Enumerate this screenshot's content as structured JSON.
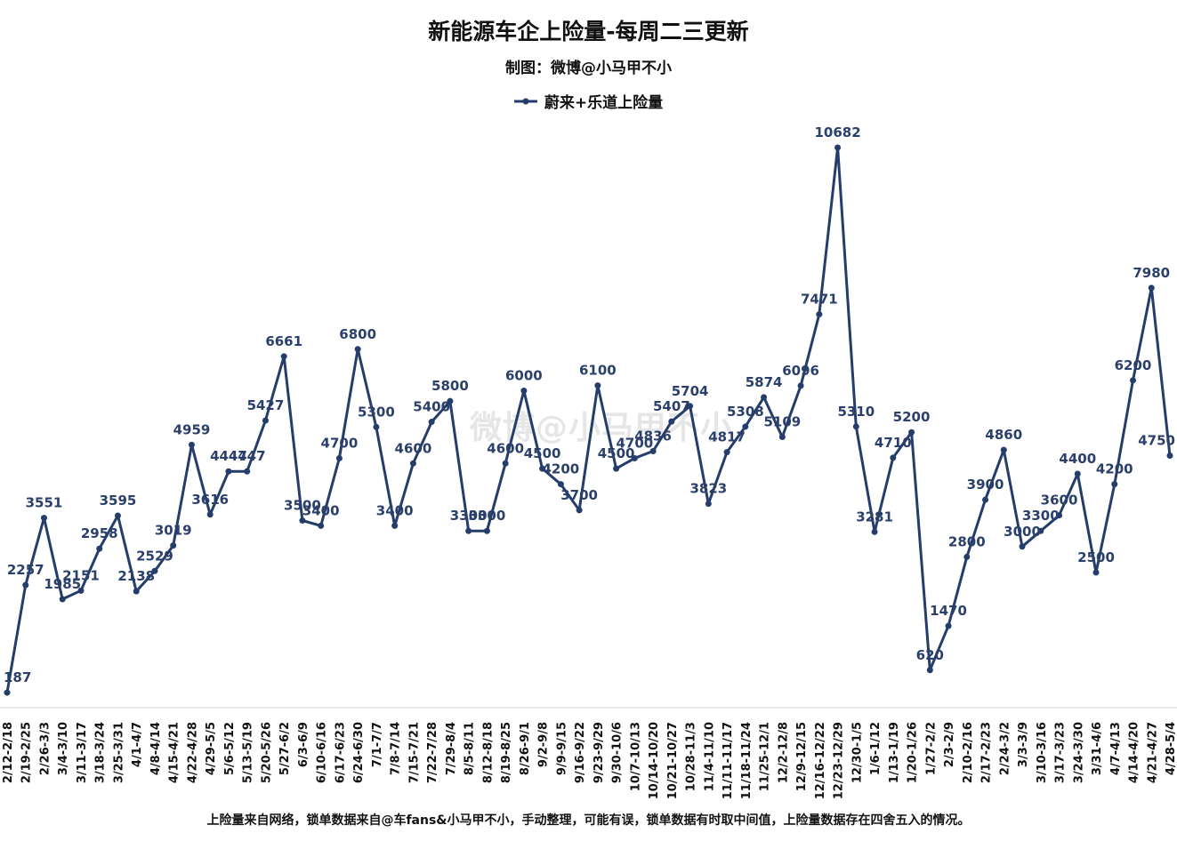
{
  "title": "新能源车企上险量-每周二三更新",
  "subtitle": "制图：微博@小马甲不小",
  "footnote": "上险量来自网络，锁单数据来自@车fans&小马甲不小，手动整理，可能有误，锁单数据有时取中间值，上险量数据存在四舍五入的情况。",
  "watermark": "微博@小马甲不小",
  "colors": {
    "line": "#253d6b",
    "label": "#2a3f6a"
  },
  "chart_data": {
    "type": "line",
    "title": "新能源车企上险量-每周二三更新",
    "xlabel": "",
    "ylabel": "",
    "ylim": [
      0,
      11500
    ],
    "grid": false,
    "legend": "top",
    "categories": [
      "2/12-2/18",
      "2/19-2/25",
      "2/26-3/3",
      "3/4-3/10",
      "3/11-3/17",
      "3/18-3/24",
      "3/25-3/31",
      "4/1-4/7",
      "4/8-4/14",
      "4/15-4/21",
      "4/22-4/28",
      "4/29-5/5",
      "5/6-5/12",
      "5/13-5/19",
      "5/20-5/26",
      "5/27-6/2",
      "6/3-6/9",
      "6/10-6/16",
      "6/17-6/23",
      "6/24-6/30",
      "7/1-7/7",
      "7/8-7/14",
      "7/15-7/21",
      "7/22-7/28",
      "7/29-8/4",
      "8/5-8/11",
      "8/12-8/18",
      "8/19-8/25",
      "8/26-9/1",
      "9/2-9/8",
      "9/9-9/15",
      "9/16-9/22",
      "9/23-9/29",
      "9/30-10/6",
      "10/7-10/13",
      "10/14-10/20",
      "10/21-10/27",
      "10/28-11/3",
      "11/4-11/10",
      "11/11-11/17",
      "11/18-11/24",
      "11/25-12/1",
      "12/2-12/8",
      "12/9-12/15",
      "12/16-12/22",
      "12/23-12/29",
      "12/30-1/5",
      "1/6-1/12",
      "1/13-1/19",
      "1/20-1/26",
      "1/27-2/2",
      "2/3-2/9",
      "2/10-2/16",
      "2/17-2/23",
      "2/24-3/2",
      "3/3-3/9",
      "3/10-3/16",
      "3/17-3/23",
      "3/24-3/30",
      "3/31-4/6",
      "4/7-4/13",
      "4/14-4/20",
      "4/21-4/27",
      "4/28-5/4"
    ],
    "series": [
      {
        "name": "蔚来+乐道上险量",
        "values": [
          187,
          2257,
          3551,
          1985,
          2151,
          2958,
          3595,
          2138,
          2529,
          3019,
          4959,
          3616,
          4447,
          4447,
          5427,
          6661,
          3500,
          3400,
          4700,
          6800,
          5300,
          3400,
          4600,
          5400,
          5800,
          3300,
          3300,
          4600,
          6000,
          4500,
          4200,
          3700,
          6100,
          4500,
          4700,
          4836,
          5407,
          5704,
          3823,
          4817,
          5308,
          5874,
          5109,
          6096,
          7471,
          10682,
          5310,
          3281,
          4710,
          5200,
          620,
          1470,
          2800,
          3900,
          4860,
          3000,
          3300,
          3600,
          4400,
          2500,
          4200,
          6200,
          7980,
          4750
        ],
        "data_labels": [
          "187",
          "2257",
          "3551",
          "1985",
          "2151",
          "2958",
          "3595",
          "2138",
          "2529",
          "3019",
          "4959",
          "3616",
          "4447",
          "4447",
          "5427",
          "6661",
          "3500",
          "3400",
          "4700",
          "6800",
          "5300",
          "3400",
          "4600",
          "5400",
          "5800",
          "3300",
          "3300",
          "4600",
          "6000",
          "4500",
          "4200",
          "3700",
          "6100",
          "4500",
          "4700",
          "4836",
          "5407",
          "5704",
          "3823",
          "4817",
          "5308",
          "5874",
          "5109",
          "6096",
          "7471",
          "10682",
          "5310",
          "3281",
          "4710",
          "5200",
          "620",
          "1470",
          "2800",
          "3900",
          "4860",
          "3000",
          "3300",
          "3600",
          "4400",
          "2500",
          "4200",
          "6200",
          "7980",
          "4750"
        ]
      }
    ]
  }
}
